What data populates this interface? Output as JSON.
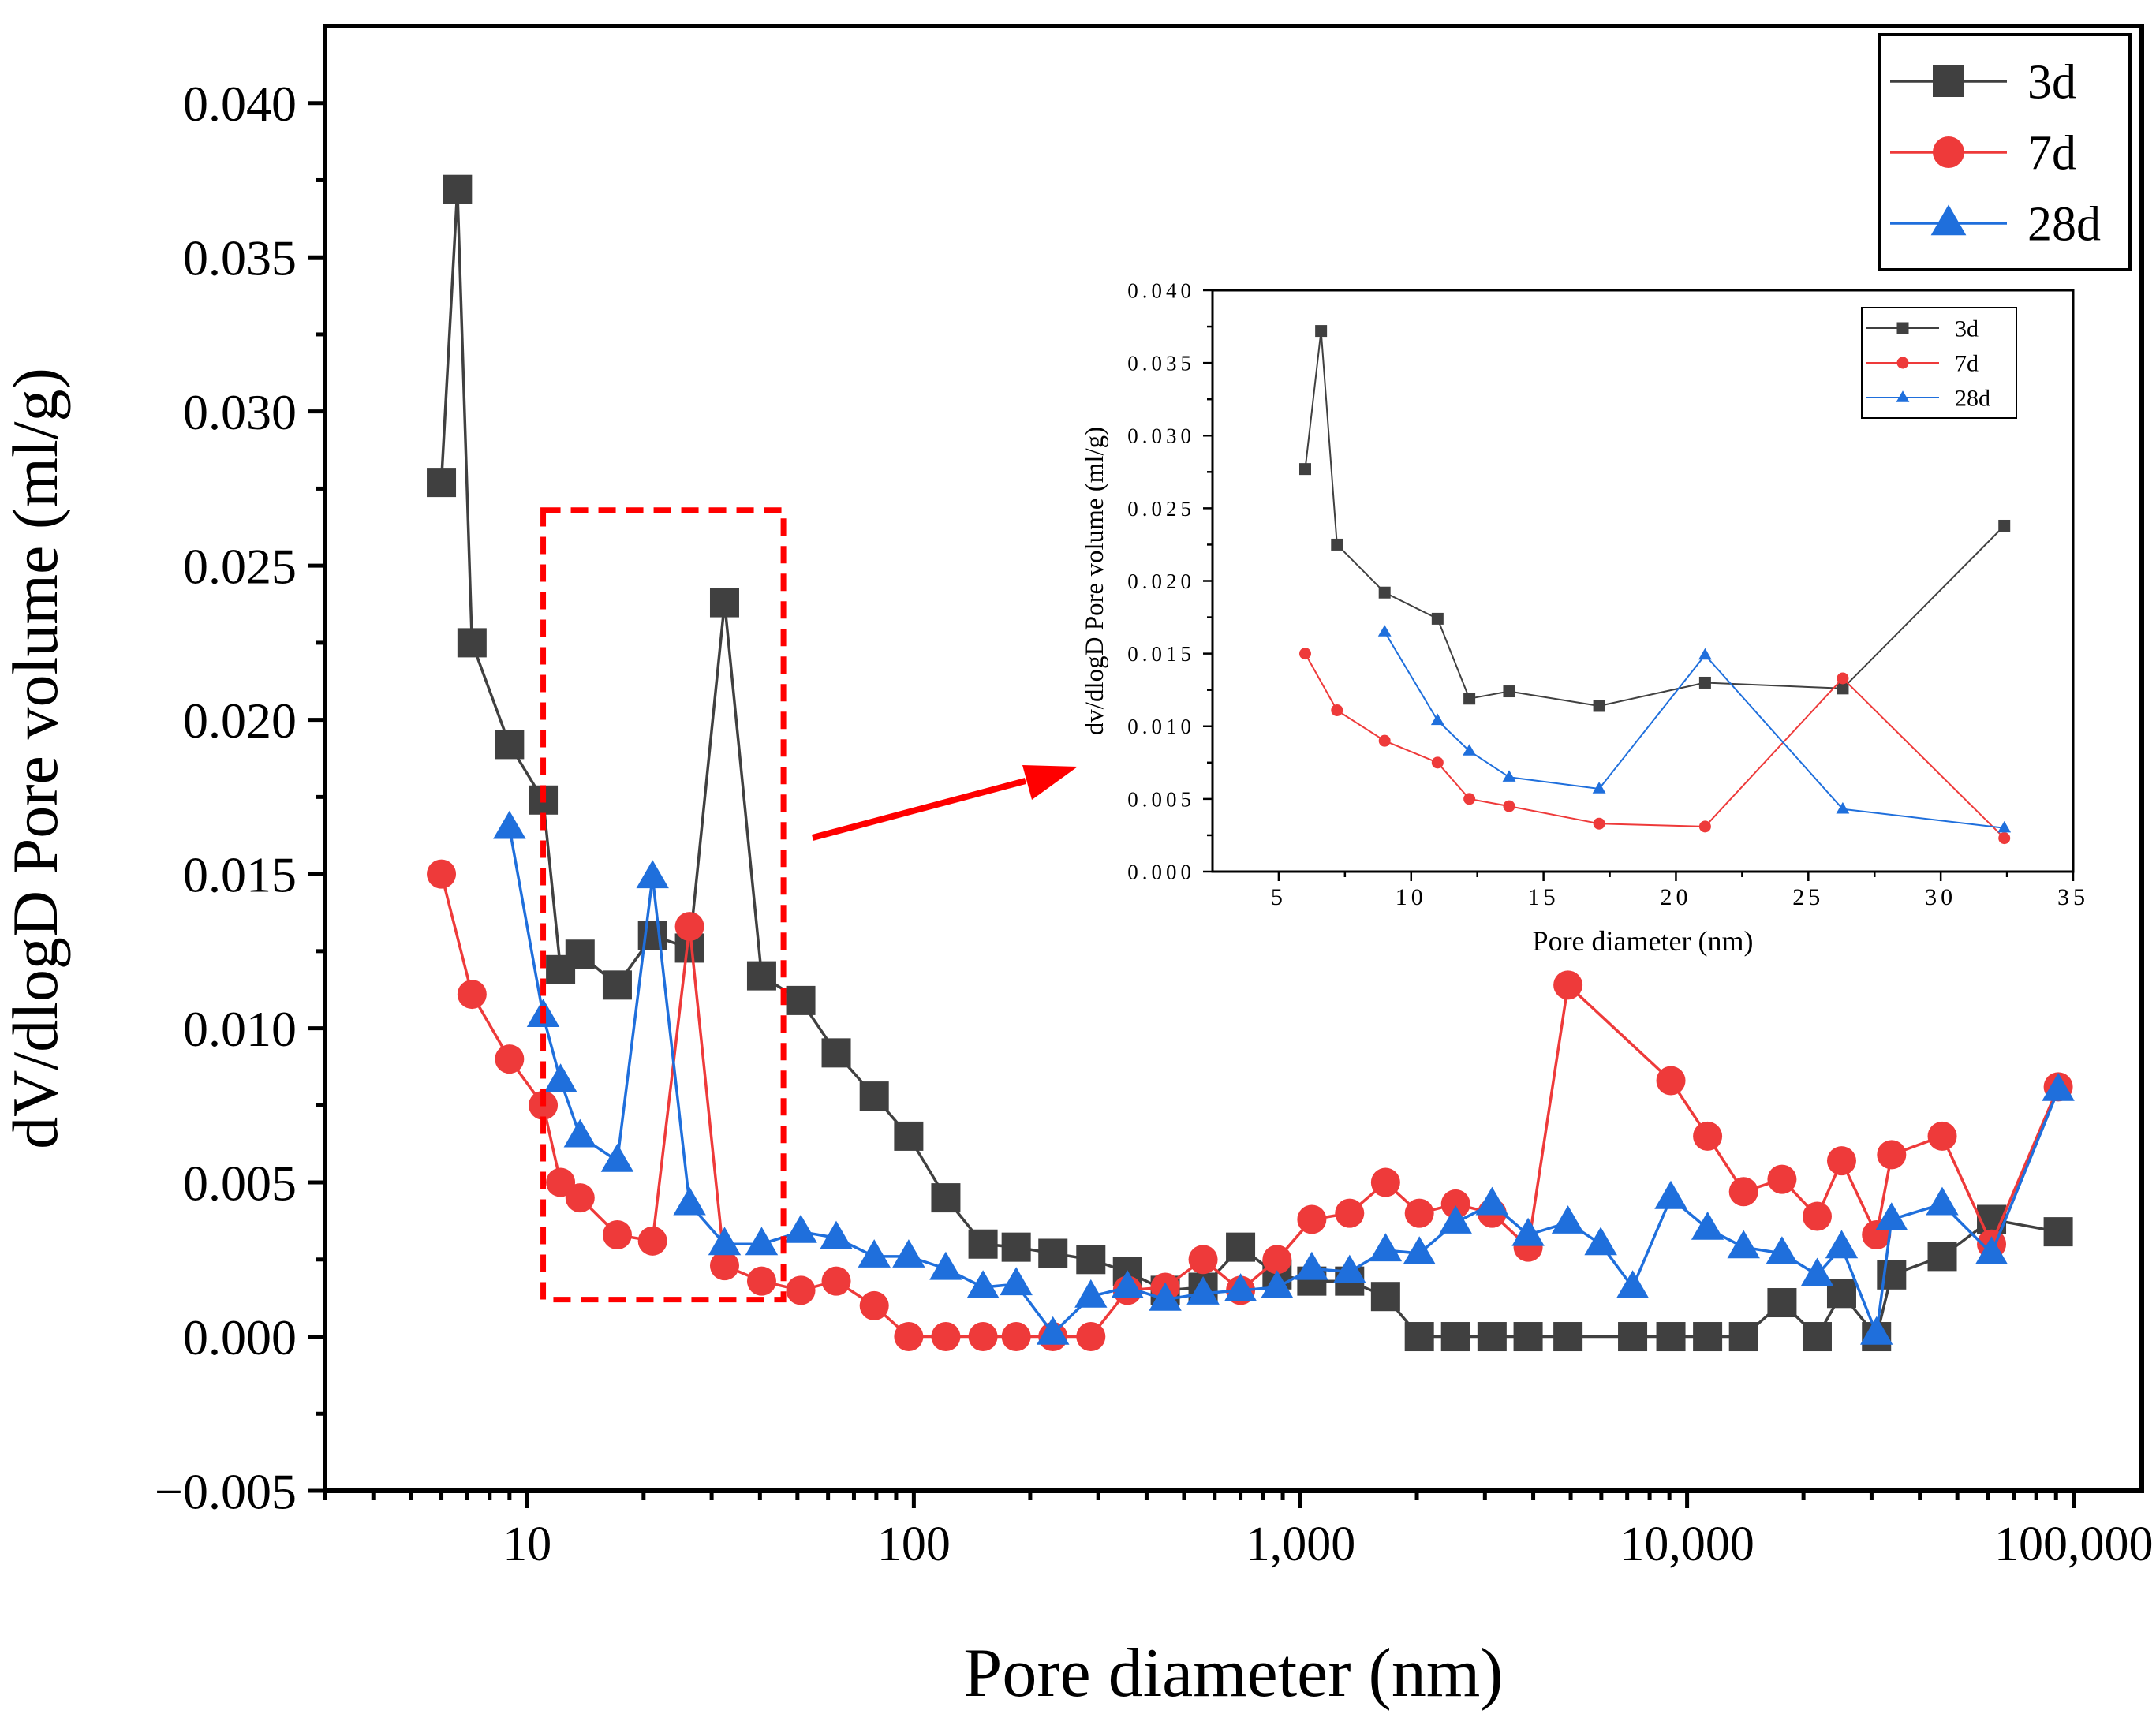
{
  "chart_data": [
    {
      "type": "line",
      "xscale": "log",
      "xlabel": "Pore diameter (nm)",
      "ylabel": "dV/dlogD Pore volume (ml/g)",
      "xlim": [
        3,
        150000
      ],
      "ylim": [
        -0.005,
        0.0425
      ],
      "x_ticks": [
        10,
        100,
        1000,
        10000,
        100000
      ],
      "x_tick_labels": [
        "10",
        "100",
        "1,000",
        "10,000",
        "100,000"
      ],
      "y_ticks": [
        -0.005,
        0,
        0.005,
        0.01,
        0.015,
        0.02,
        0.025,
        0.03,
        0.035,
        0.04
      ],
      "y_tick_labels": [
        "−0.005",
        "0.000",
        "0.005",
        "0.010",
        "0.015",
        "0.020",
        "0.025",
        "0.030",
        "0.035",
        "0.040"
      ],
      "grid": false,
      "legend_position": "top-right",
      "series": [
        {
          "name": "3d",
          "color": "#404040",
          "marker": "square",
          "x": [
            6.0,
            6.6,
            7.2,
            9.0,
            11.0,
            12.2,
            13.7,
            17.1,
            21.1,
            26.3,
            32.4,
            40.4,
            51,
            63,
            79,
            97,
            121,
            151,
            184,
            229,
            287,
            357,
            447,
            560,
            700,
            870,
            1070,
            1340,
            1660,
            2030,
            2520,
            3130,
            3880,
            4920,
            7230,
            9080,
            11300,
            14000,
            17600,
            21700,
            25100,
            30900,
            33800,
            45700,
            61300,
            91200
          ],
          "y": [
            0.0277,
            0.0372,
            0.0225,
            0.0192,
            0.0174,
            0.0119,
            0.0124,
            0.0114,
            0.013,
            0.0126,
            0.0238,
            0.0117,
            0.0109,
            0.0092,
            0.0078,
            0.0065,
            0.0045,
            0.003,
            0.0029,
            0.0027,
            0.0025,
            0.0021,
            0.0015,
            0.0016,
            0.0029,
            0.002,
            0.0018,
            0.0018,
            0.0013,
            0.0,
            0.0,
            0.0,
            0.0,
            0.0,
            0.0,
            0.0,
            0.0,
            0.0,
            0.0011,
            0.0,
            0.0014,
            0.0,
            0.002,
            0.0026,
            0.0038,
            0.0034
          ]
        },
        {
          "name": "7d",
          "color": "#ee3a3a",
          "marker": "circle",
          "x": [
            6.0,
            7.2,
            9.0,
            11.0,
            12.2,
            13.7,
            17.1,
            21.1,
            26.3,
            32.4,
            40.4,
            51,
            63,
            79,
            97,
            121,
            151,
            184,
            229,
            287,
            357,
            447,
            560,
            700,
            870,
            1070,
            1340,
            1660,
            2030,
            2520,
            3130,
            3880,
            4920,
            9080,
            11300,
            14000,
            17600,
            21700,
            25100,
            30900,
            33800,
            45700,
            61300,
            91200
          ],
          "y": [
            0.015,
            0.0111,
            0.009,
            0.0075,
            0.005,
            0.0045,
            0.0033,
            0.0031,
            0.0133,
            0.0023,
            0.0018,
            0.0015,
            0.0018,
            0.001,
            0.0,
            0.0,
            0.0,
            0.0,
            0.0,
            0.0,
            0.0015,
            0.0016,
            0.0025,
            0.0015,
            0.0025,
            0.0038,
            0.004,
            0.005,
            0.004,
            0.0043,
            0.004,
            0.0029,
            0.0114,
            0.0083,
            0.0065,
            0.0047,
            0.0051,
            0.0039,
            0.0057,
            0.0033,
            0.0059,
            0.0065,
            0.003,
            0.0081
          ]
        },
        {
          "name": "28d",
          "color": "#1f6fdc",
          "marker": "triangle",
          "x": [
            9.0,
            11.0,
            12.2,
            13.7,
            17.1,
            21.1,
            26.3,
            32.4,
            40.4,
            51,
            63,
            79,
            97,
            121,
            151,
            184,
            229,
            287,
            357,
            447,
            560,
            700,
            870,
            1070,
            1340,
            1660,
            2030,
            2520,
            3130,
            3880,
            4920,
            5980,
            7230,
            9080,
            11300,
            14000,
            17600,
            21700,
            25100,
            30900,
            33800,
            45700,
            61300,
            91200
          ],
          "y": [
            0.0165,
            0.0104,
            0.0083,
            0.0065,
            0.0057,
            0.0149,
            0.0043,
            0.003,
            0.003,
            0.0034,
            0.0032,
            0.0026,
            0.0026,
            0.0022,
            0.0016,
            0.0017,
            0.0001,
            0.0013,
            0.0016,
            0.0012,
            0.0014,
            0.0015,
            0.0016,
            0.0022,
            0.0021,
            0.0028,
            0.0027,
            0.0037,
            0.0043,
            0.0033,
            0.0037,
            0.003,
            0.0016,
            0.0045,
            0.0035,
            0.0029,
            0.0027,
            0.002,
            0.0029,
            0.0001,
            0.0038,
            0.0043,
            0.0027,
            0.008
          ]
        }
      ]
    },
    {
      "type": "line",
      "xscale": "linear",
      "xlabel": "Pore diameter (nm)",
      "ylabel": "dv/dlogD Pore volume (ml/g)",
      "xlim": [
        2.5,
        35
      ],
      "ylim": [
        0,
        0.04
      ],
      "x_ticks": [
        5,
        10,
        15,
        20,
        25,
        30,
        35
      ],
      "x_tick_labels": [
        "5",
        "10",
        "15",
        "20",
        "25",
        "30",
        "35"
      ],
      "y_ticks": [
        0,
        0.005,
        0.01,
        0.015,
        0.02,
        0.025,
        0.03,
        0.035,
        0.04
      ],
      "y_tick_labels": [
        "0.000",
        "0.005",
        "0.010",
        "0.015",
        "0.020",
        "0.025",
        "0.030",
        "0.035",
        "0.040"
      ],
      "grid": false,
      "legend_position": "top-right",
      "series": [
        {
          "name": "3d",
          "color": "#404040",
          "marker": "square",
          "x": [
            6.0,
            6.6,
            7.2,
            9.0,
            11.0,
            12.2,
            13.7,
            17.1,
            21.1,
            26.3,
            32.4
          ],
          "y": [
            0.0277,
            0.0372,
            0.0225,
            0.0192,
            0.0174,
            0.0119,
            0.0124,
            0.0114,
            0.013,
            0.0126,
            0.0238
          ]
        },
        {
          "name": "7d",
          "color": "#ee3a3a",
          "marker": "circle",
          "x": [
            6.0,
            7.2,
            9.0,
            11.0,
            12.2,
            13.7,
            17.1,
            21.1,
            26.3,
            32.4
          ],
          "y": [
            0.015,
            0.0111,
            0.009,
            0.0075,
            0.005,
            0.0045,
            0.0033,
            0.0031,
            0.0133,
            0.0023
          ]
        },
        {
          "name": "28d",
          "color": "#1f6fdc",
          "marker": "triangle",
          "x": [
            9.0,
            11.0,
            12.2,
            13.7,
            17.1,
            21.1,
            26.3,
            32.4
          ],
          "y": [
            0.0165,
            0.0104,
            0.0083,
            0.0065,
            0.0057,
            0.0149,
            0.0043,
            0.003
          ]
        }
      ]
    }
  ],
  "annotations": {
    "highlight_box_color": "#ff0000",
    "arrow_color": "#ff0000"
  }
}
